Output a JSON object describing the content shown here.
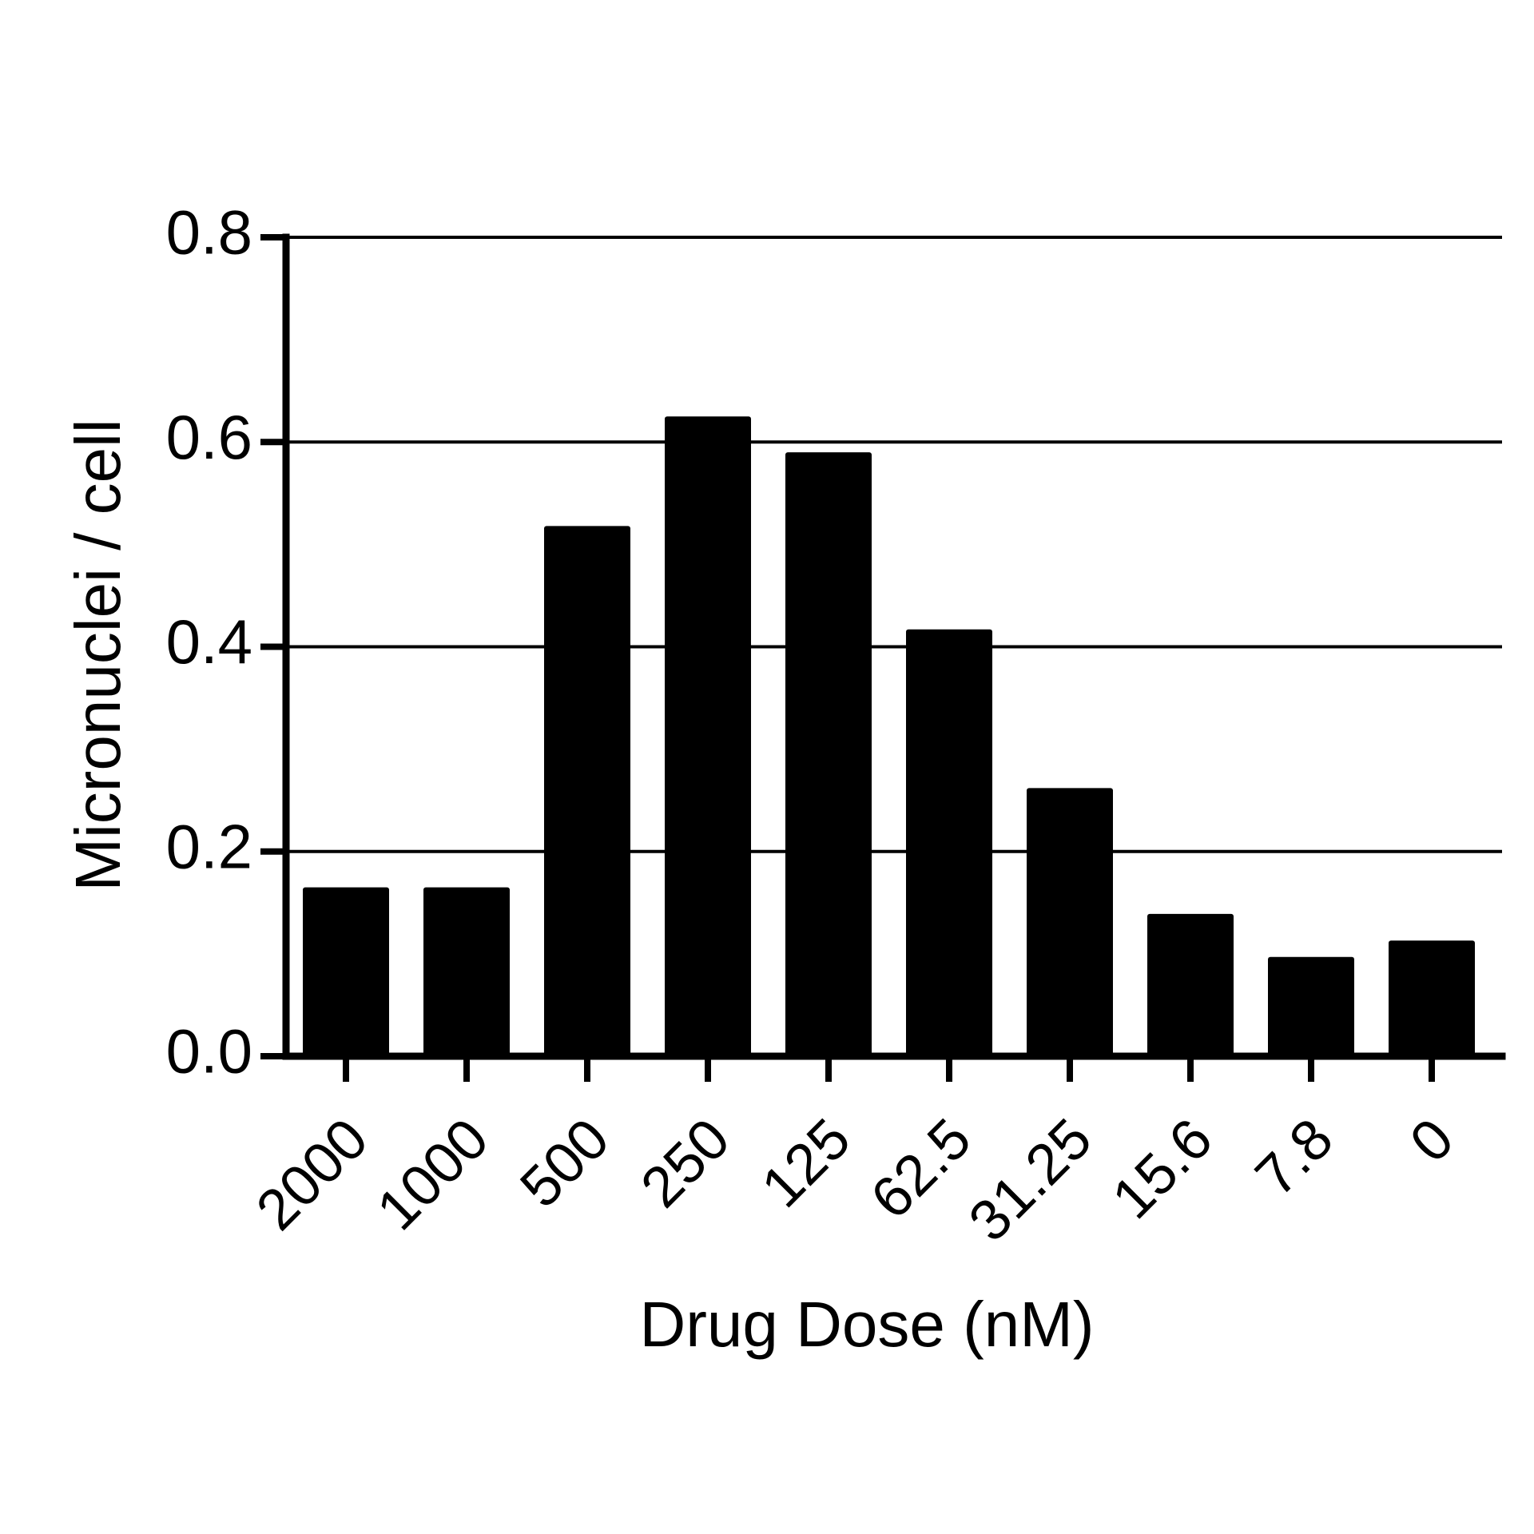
{
  "chart_data": {
    "type": "bar",
    "title": "",
    "xlabel": "Drug Dose (nM)",
    "ylabel": "Micronuclei / cell",
    "categories": [
      "2000",
      "1000",
      "500",
      "250",
      "125",
      "62.5",
      "31.25",
      "15.6",
      "7.8",
      "0"
    ],
    "values": [
      0.165,
      0.165,
      0.518,
      0.625,
      0.59,
      0.417,
      0.262,
      0.139,
      0.097,
      0.113
    ],
    "ylim": [
      0,
      0.8
    ],
    "yticks": [
      "0.0",
      "0.2",
      "0.4",
      "0.6",
      "0.8"
    ],
    "grid": true,
    "legend": "none",
    "bar_color": "#000000",
    "axis_color": "#000000"
  }
}
